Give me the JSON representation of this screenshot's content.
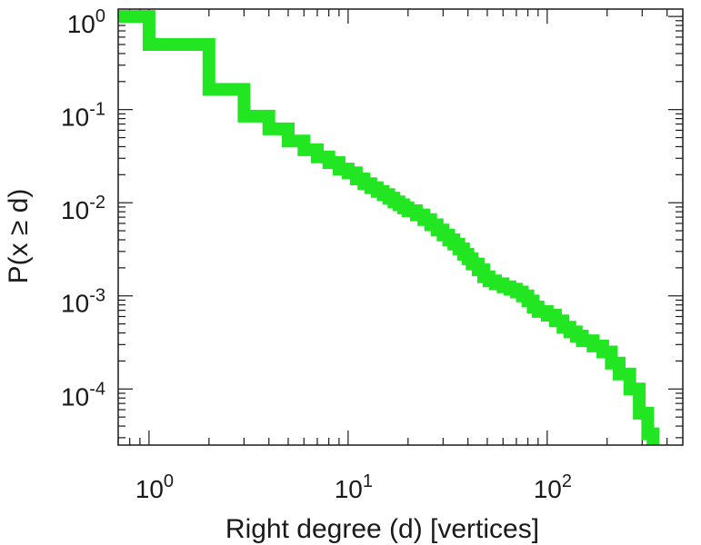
{
  "chart_data": {
    "type": "line",
    "subtype": "step",
    "title": "",
    "xlabel": "Right degree (d) [vertices]",
    "ylabel": "P(x ≥ d)",
    "xscale": "log",
    "yscale": "log",
    "xlim": [
      0.7,
      480
    ],
    "ylim": [
      2.5e-05,
      1.2
    ],
    "grid": false,
    "legend": "none",
    "line_color": "#22e622",
    "x_ticks": [
      {
        "value": 1,
        "base": "10",
        "exp": "0"
      },
      {
        "value": 10,
        "base": "10",
        "exp": "1"
      },
      {
        "value": 100,
        "base": "10",
        "exp": "2"
      }
    ],
    "y_ticks": [
      {
        "value": 1,
        "base": "10",
        "exp": "0"
      },
      {
        "value": 0.1,
        "base": "10",
        "exp": "-1"
      },
      {
        "value": 0.01,
        "base": "10",
        "exp": "-2"
      },
      {
        "value": 0.001,
        "base": "10",
        "exp": "-3"
      },
      {
        "value": 0.0001,
        "base": "10",
        "exp": "-4"
      }
    ],
    "series": [
      {
        "points": [
          [
            0.7,
            1.0
          ],
          [
            1,
            0.5
          ],
          [
            2,
            0.165
          ],
          [
            3,
            0.085
          ],
          [
            4,
            0.062
          ],
          [
            5,
            0.046
          ],
          [
            6,
            0.037
          ],
          [
            7,
            0.031
          ],
          [
            8,
            0.027
          ],
          [
            9,
            0.023
          ],
          [
            10,
            0.021
          ],
          [
            11,
            0.018
          ],
          [
            12,
            0.016
          ],
          [
            13,
            0.0145
          ],
          [
            14,
            0.0132
          ],
          [
            15,
            0.0122
          ],
          [
            16,
            0.0112
          ],
          [
            17,
            0.0102
          ],
          [
            18,
            0.0095
          ],
          [
            19,
            0.0088
          ],
          [
            20,
            0.0082
          ],
          [
            22,
            0.0074
          ],
          [
            24,
            0.0066
          ],
          [
            26,
            0.0058
          ],
          [
            28,
            0.0051
          ],
          [
            30,
            0.0045
          ],
          [
            32,
            0.004
          ],
          [
            34,
            0.0036
          ],
          [
            36,
            0.0032
          ],
          [
            38,
            0.0028
          ],
          [
            40,
            0.0025
          ],
          [
            42,
            0.0022
          ],
          [
            45,
            0.0019
          ],
          [
            48,
            0.0016
          ],
          [
            51,
            0.00145
          ],
          [
            55,
            0.00135
          ],
          [
            60,
            0.00125
          ],
          [
            65,
            0.00118
          ],
          [
            70,
            0.0011
          ],
          [
            75,
            0.001
          ],
          [
            80,
            0.00088
          ],
          [
            85,
            0.00076
          ],
          [
            90,
            0.00068
          ],
          [
            100,
            0.00062
          ],
          [
            110,
            0.00054
          ],
          [
            120,
            0.00046
          ],
          [
            130,
            0.00041
          ],
          [
            140,
            0.00037
          ],
          [
            150,
            0.00033
          ],
          [
            170,
            0.00029
          ],
          [
            190,
            0.00025
          ],
          [
            210,
            0.00019
          ],
          [
            230,
            0.000145
          ],
          [
            260,
            0.0001
          ],
          [
            290,
            5.5e-05
          ],
          [
            320,
            3.3e-05
          ],
          [
            340,
            2.5e-05
          ]
        ]
      }
    ]
  }
}
